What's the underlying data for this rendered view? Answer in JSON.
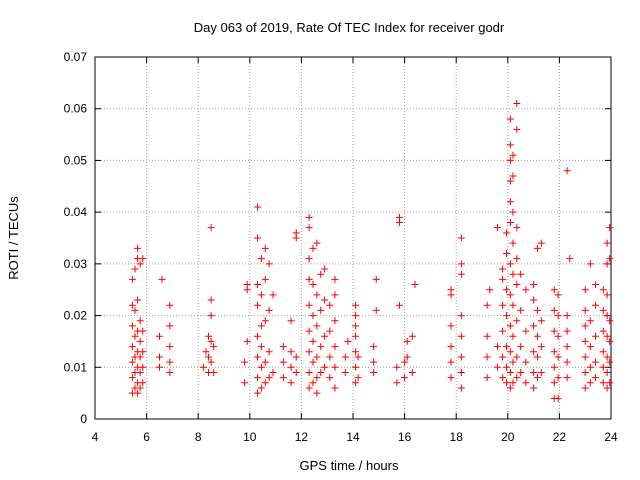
{
  "chart_data": {
    "type": "scatter",
    "title": "Day 063 of 2019, Rate Of TEC Index for receiver godr",
    "xlabel": "GPS time / hours",
    "ylabel": "ROTI / TECUs",
    "xlim": [
      4,
      24
    ],
    "ylim": [
      0,
      0.07
    ],
    "xticks": [
      4,
      6,
      8,
      10,
      12,
      14,
      16,
      18,
      20,
      22,
      24
    ],
    "yticks": [
      0,
      0.01,
      0.02,
      0.03,
      0.04,
      0.05,
      0.06,
      0.07
    ],
    "xtick_labels": [
      "4",
      "6",
      "8",
      "10",
      "12",
      "14",
      "16",
      "18",
      "20",
      "22",
      "24"
    ],
    "ytick_labels": [
      "0",
      "0.01",
      "0.02",
      "0.03",
      "0.04",
      "0.05",
      "0.06",
      "0.07"
    ],
    "grid": true,
    "marker": "plus",
    "color": "#ff0000",
    "series": [
      {
        "name": "ROTI",
        "points": [
          [
            5.45,
            0.005
          ],
          [
            5.45,
            0.008
          ],
          [
            5.45,
            0.011
          ],
          [
            5.45,
            0.014
          ],
          [
            5.45,
            0.018
          ],
          [
            5.45,
            0.022
          ],
          [
            5.45,
            0.027
          ],
          [
            5.55,
            0.006
          ],
          [
            5.55,
            0.009
          ],
          [
            5.55,
            0.012
          ],
          [
            5.55,
            0.016
          ],
          [
            5.55,
            0.021
          ],
          [
            5.55,
            0.029
          ],
          [
            5.65,
            0.005
          ],
          [
            5.65,
            0.007
          ],
          [
            5.65,
            0.01
          ],
          [
            5.65,
            0.013
          ],
          [
            5.65,
            0.017
          ],
          [
            5.65,
            0.023
          ],
          [
            5.65,
            0.031
          ],
          [
            5.65,
            0.033
          ],
          [
            5.75,
            0.006
          ],
          [
            5.75,
            0.009
          ],
          [
            5.75,
            0.012
          ],
          [
            5.75,
            0.015
          ],
          [
            5.75,
            0.019
          ],
          [
            5.75,
            0.03
          ],
          [
            5.85,
            0.007
          ],
          [
            5.85,
            0.01
          ],
          [
            5.85,
            0.013
          ],
          [
            5.85,
            0.017
          ],
          [
            5.85,
            0.031
          ],
          [
            6.5,
            0.01
          ],
          [
            6.5,
            0.012
          ],
          [
            6.5,
            0.016
          ],
          [
            6.6,
            0.027
          ],
          [
            6.9,
            0.009
          ],
          [
            6.9,
            0.011
          ],
          [
            6.9,
            0.014
          ],
          [
            6.9,
            0.018
          ],
          [
            6.9,
            0.022
          ],
          [
            8.2,
            0.01
          ],
          [
            8.3,
            0.013
          ],
          [
            8.4,
            0.009
          ],
          [
            8.4,
            0.012
          ],
          [
            8.4,
            0.016
          ],
          [
            8.5,
            0.011
          ],
          [
            8.5,
            0.015
          ],
          [
            8.5,
            0.02
          ],
          [
            8.5,
            0.023
          ],
          [
            8.6,
            0.009
          ],
          [
            8.6,
            0.014
          ],
          [
            8.5,
            0.037
          ],
          [
            9.8,
            0.007
          ],
          [
            9.8,
            0.011
          ],
          [
            9.9,
            0.015
          ],
          [
            9.9,
            0.025
          ],
          [
            9.9,
            0.026
          ],
          [
            10.3,
            0.005
          ],
          [
            10.3,
            0.008
          ],
          [
            10.3,
            0.012
          ],
          [
            10.3,
            0.016
          ],
          [
            10.3,
            0.022
          ],
          [
            10.3,
            0.026
          ],
          [
            10.3,
            0.035
          ],
          [
            10.3,
            0.041
          ],
          [
            10.45,
            0.006
          ],
          [
            10.45,
            0.01
          ],
          [
            10.45,
            0.014
          ],
          [
            10.45,
            0.018
          ],
          [
            10.45,
            0.024
          ],
          [
            10.45,
            0.031
          ],
          [
            10.6,
            0.007
          ],
          [
            10.6,
            0.011
          ],
          [
            10.6,
            0.019
          ],
          [
            10.6,
            0.027
          ],
          [
            10.6,
            0.033
          ],
          [
            10.75,
            0.008
          ],
          [
            10.75,
            0.013
          ],
          [
            10.75,
            0.021
          ],
          [
            10.75,
            0.03
          ],
          [
            10.9,
            0.009
          ],
          [
            10.9,
            0.024
          ],
          [
            11.3,
            0.008
          ],
          [
            11.3,
            0.011
          ],
          [
            11.3,
            0.014
          ],
          [
            11.6,
            0.007
          ],
          [
            11.6,
            0.01
          ],
          [
            11.6,
            0.013
          ],
          [
            11.6,
            0.019
          ],
          [
            11.8,
            0.009
          ],
          [
            11.8,
            0.012
          ],
          [
            11.8,
            0.035
          ],
          [
            11.8,
            0.036
          ],
          [
            12.3,
            0.006
          ],
          [
            12.3,
            0.009
          ],
          [
            12.3,
            0.013
          ],
          [
            12.3,
            0.017
          ],
          [
            12.3,
            0.022
          ],
          [
            12.3,
            0.027
          ],
          [
            12.3,
            0.031
          ],
          [
            12.3,
            0.037
          ],
          [
            12.3,
            0.039
          ],
          [
            12.45,
            0.007
          ],
          [
            12.45,
            0.011
          ],
          [
            12.45,
            0.015
          ],
          [
            12.45,
            0.02
          ],
          [
            12.45,
            0.026
          ],
          [
            12.45,
            0.033
          ],
          [
            12.6,
            0.005
          ],
          [
            12.6,
            0.008
          ],
          [
            12.6,
            0.012
          ],
          [
            12.6,
            0.018
          ],
          [
            12.6,
            0.024
          ],
          [
            12.6,
            0.034
          ],
          [
            12.75,
            0.009
          ],
          [
            12.75,
            0.014
          ],
          [
            12.75,
            0.021
          ],
          [
            12.75,
            0.028
          ],
          [
            12.9,
            0.01
          ],
          [
            12.9,
            0.016
          ],
          [
            12.9,
            0.023
          ],
          [
            12.9,
            0.029
          ],
          [
            13.1,
            0.008
          ],
          [
            13.1,
            0.012
          ],
          [
            13.1,
            0.017
          ],
          [
            13.1,
            0.022
          ],
          [
            13.3,
            0.006
          ],
          [
            13.3,
            0.01
          ],
          [
            13.3,
            0.014
          ],
          [
            13.3,
            0.019
          ],
          [
            13.3,
            0.024
          ],
          [
            13.3,
            0.027
          ],
          [
            13.7,
            0.009
          ],
          [
            13.7,
            0.012
          ],
          [
            13.8,
            0.015
          ],
          [
            14.1,
            0.007
          ],
          [
            14.1,
            0.01
          ],
          [
            14.1,
            0.013
          ],
          [
            14.1,
            0.016
          ],
          [
            14.1,
            0.018
          ],
          [
            14.1,
            0.02
          ],
          [
            14.1,
            0.022
          ],
          [
            14.2,
            0.008
          ],
          [
            14.2,
            0.012
          ],
          [
            14.8,
            0.009
          ],
          [
            14.8,
            0.011
          ],
          [
            14.8,
            0.014
          ],
          [
            14.9,
            0.027
          ],
          [
            14.9,
            0.021
          ],
          [
            15.7,
            0.007
          ],
          [
            15.7,
            0.01
          ],
          [
            15.8,
            0.022
          ],
          [
            15.8,
            0.038
          ],
          [
            15.8,
            0.039
          ],
          [
            16.0,
            0.008
          ],
          [
            16.0,
            0.011
          ],
          [
            16.1,
            0.012
          ],
          [
            16.1,
            0.015
          ],
          [
            16.3,
            0.009
          ],
          [
            16.3,
            0.016
          ],
          [
            16.4,
            0.026
          ],
          [
            17.8,
            0.008
          ],
          [
            17.8,
            0.011
          ],
          [
            17.8,
            0.014
          ],
          [
            17.8,
            0.018
          ],
          [
            17.8,
            0.024
          ],
          [
            17.8,
            0.025
          ],
          [
            18.2,
            0.006
          ],
          [
            18.2,
            0.009
          ],
          [
            18.2,
            0.012
          ],
          [
            18.2,
            0.016
          ],
          [
            18.2,
            0.02
          ],
          [
            18.2,
            0.028
          ],
          [
            18.2,
            0.03
          ],
          [
            18.2,
            0.035
          ],
          [
            19.2,
            0.008
          ],
          [
            19.2,
            0.012
          ],
          [
            19.2,
            0.016
          ],
          [
            19.2,
            0.022
          ],
          [
            19.3,
            0.025
          ],
          [
            19.6,
            0.01
          ],
          [
            19.6,
            0.014
          ],
          [
            19.6,
            0.037
          ],
          [
            19.8,
            0.008
          ],
          [
            19.8,
            0.012
          ],
          [
            19.8,
            0.017
          ],
          [
            19.8,
            0.022
          ],
          [
            19.8,
            0.027
          ],
          [
            19.8,
            0.029
          ],
          [
            19.95,
            0.007
          ],
          [
            19.95,
            0.01
          ],
          [
            19.95,
            0.014
          ],
          [
            19.95,
            0.02
          ],
          [
            19.95,
            0.025
          ],
          [
            19.95,
            0.032
          ],
          [
            19.95,
            0.036
          ],
          [
            20.1,
            0.006
          ],
          [
            20.1,
            0.009
          ],
          [
            20.1,
            0.013
          ],
          [
            20.1,
            0.018
          ],
          [
            20.1,
            0.024
          ],
          [
            20.1,
            0.03
          ],
          [
            20.1,
            0.038
          ],
          [
            20.1,
            0.042
          ],
          [
            20.1,
            0.046
          ],
          [
            20.1,
            0.05
          ],
          [
            20.1,
            0.053
          ],
          [
            20.1,
            0.058
          ],
          [
            20.2,
            0.007
          ],
          [
            20.2,
            0.011
          ],
          [
            20.2,
            0.016
          ],
          [
            20.2,
            0.022
          ],
          [
            20.2,
            0.028
          ],
          [
            20.2,
            0.034
          ],
          [
            20.2,
            0.04
          ],
          [
            20.2,
            0.047
          ],
          [
            20.2,
            0.051
          ],
          [
            20.35,
            0.008
          ],
          [
            20.35,
            0.012
          ],
          [
            20.35,
            0.019
          ],
          [
            20.35,
            0.026
          ],
          [
            20.35,
            0.031
          ],
          [
            20.35,
            0.037
          ],
          [
            20.35,
            0.056
          ],
          [
            20.35,
            0.061
          ],
          [
            20.5,
            0.009
          ],
          [
            20.5,
            0.014
          ],
          [
            20.5,
            0.021
          ],
          [
            20.5,
            0.028
          ],
          [
            20.7,
            0.007
          ],
          [
            20.7,
            0.011
          ],
          [
            20.7,
            0.017
          ],
          [
            20.7,
            0.025
          ],
          [
            21.0,
            0.006
          ],
          [
            21.0,
            0.009
          ],
          [
            21.0,
            0.013
          ],
          [
            21.0,
            0.018
          ],
          [
            21.0,
            0.023
          ],
          [
            21.0,
            0.026
          ],
          [
            21.15,
            0.008
          ],
          [
            21.15,
            0.012
          ],
          [
            21.15,
            0.016
          ],
          [
            21.15,
            0.021
          ],
          [
            21.15,
            0.033
          ],
          [
            21.3,
            0.009
          ],
          [
            21.3,
            0.014
          ],
          [
            21.3,
            0.019
          ],
          [
            21.3,
            0.034
          ],
          [
            21.8,
            0.004
          ],
          [
            21.8,
            0.007
          ],
          [
            21.8,
            0.01
          ],
          [
            21.8,
            0.013
          ],
          [
            21.8,
            0.017
          ],
          [
            21.8,
            0.021
          ],
          [
            21.8,
            0.025
          ],
          [
            21.95,
            0.004
          ],
          [
            21.95,
            0.008
          ],
          [
            21.95,
            0.012
          ],
          [
            21.95,
            0.016
          ],
          [
            21.95,
            0.02
          ],
          [
            21.95,
            0.024
          ],
          [
            22.3,
            0.008
          ],
          [
            22.3,
            0.011
          ],
          [
            22.3,
            0.014
          ],
          [
            22.3,
            0.017
          ],
          [
            22.3,
            0.02
          ],
          [
            22.4,
            0.031
          ],
          [
            22.3,
            0.048
          ],
          [
            23.0,
            0.006
          ],
          [
            23.0,
            0.009
          ],
          [
            23.0,
            0.012
          ],
          [
            23.0,
            0.015
          ],
          [
            23.0,
            0.018
          ],
          [
            23.0,
            0.021
          ],
          [
            23.0,
            0.025
          ],
          [
            23.2,
            0.007
          ],
          [
            23.2,
            0.01
          ],
          [
            23.2,
            0.014
          ],
          [
            23.2,
            0.019
          ],
          [
            23.2,
            0.03
          ],
          [
            23.4,
            0.008
          ],
          [
            23.4,
            0.011
          ],
          [
            23.4,
            0.016
          ],
          [
            23.4,
            0.022
          ],
          [
            23.4,
            0.026
          ],
          [
            23.7,
            0.007
          ],
          [
            23.7,
            0.01
          ],
          [
            23.7,
            0.013
          ],
          [
            23.7,
            0.017
          ],
          [
            23.7,
            0.021
          ],
          [
            23.7,
            0.025
          ],
          [
            23.85,
            0.006
          ],
          [
            23.85,
            0.009
          ],
          [
            23.85,
            0.012
          ],
          [
            23.85,
            0.016
          ],
          [
            23.85,
            0.02
          ],
          [
            23.85,
            0.024
          ],
          [
            23.85,
            0.03
          ],
          [
            23.85,
            0.034
          ],
          [
            23.95,
            0.007
          ],
          [
            23.95,
            0.011
          ],
          [
            23.95,
            0.015
          ],
          [
            23.95,
            0.019
          ],
          [
            23.95,
            0.031
          ],
          [
            23.95,
            0.037
          ]
        ]
      }
    ]
  }
}
